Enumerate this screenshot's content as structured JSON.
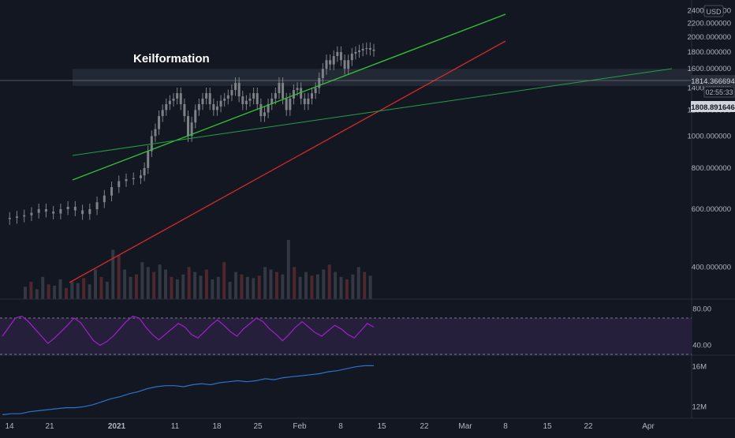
{
  "annotation": "Keilformation",
  "currency": "USD",
  "price_labels": {
    "last_price": "1814.366694",
    "countdown": "02:55:33",
    "line_value": "1808.891646"
  },
  "colors": {
    "background": "#131722",
    "pane_divider": "#2a2e39",
    "candles": "#7f8188",
    "upper_channel": "#33c433",
    "lower_channel": "#d42a2a",
    "long_trend": "#22a046",
    "zone": "#252a36",
    "rsi": "#a020c8",
    "rsi_band": "#261f3c",
    "obv": "#2f6fcc",
    "volume_up": "#3a3e48",
    "volume_down": "#5a2a30"
  },
  "chart_data": [
    {
      "type": "line",
      "name": "price",
      "y_axis": {
        "ticks": [
          "2400.000000",
          "2200.000000",
          "2000.000000",
          "1800.000000",
          "1600.000000",
          "1400.000000",
          "1200.000000",
          "1000.000000",
          "800.000000",
          "600.000000",
          "400.000000"
        ],
        "scale": "log",
        "range": [
          320,
          2450
        ]
      },
      "x_axis": {
        "ticks": [
          "14",
          "21",
          "2021",
          "11",
          "18",
          "25",
          "Feb",
          "8",
          "15",
          "22",
          "Mar",
          "8",
          "15",
          "22",
          "Apr"
        ]
      },
      "close": [
        [
          0,
          560
        ],
        [
          2,
          565
        ],
        [
          4,
          570
        ],
        [
          6,
          575
        ],
        [
          8,
          585
        ],
        [
          10,
          600
        ],
        [
          12,
          590
        ],
        [
          14,
          582
        ],
        [
          16,
          600
        ],
        [
          18,
          610
        ],
        [
          20,
          595
        ],
        [
          22,
          580
        ],
        [
          24,
          600
        ],
        [
          26,
          630
        ],
        [
          28,
          660
        ],
        [
          30,
          700
        ],
        [
          32,
          730
        ],
        [
          34,
          740
        ],
        [
          36,
          745
        ],
        [
          38,
          760
        ],
        [
          39,
          800
        ],
        [
          40,
          900
        ],
        [
          41,
          1000
        ],
        [
          42,
          1050
        ],
        [
          43,
          1150
        ],
        [
          44,
          1200
        ],
        [
          45,
          1250
        ],
        [
          46,
          1280
        ],
        [
          47,
          1300
        ],
        [
          48,
          1350
        ],
        [
          49,
          1250
        ],
        [
          50,
          1150
        ],
        [
          51,
          1000
        ],
        [
          52,
          1100
        ],
        [
          53,
          1200
        ],
        [
          54,
          1250
        ],
        [
          55,
          1300
        ],
        [
          56,
          1350
        ],
        [
          57,
          1250
        ],
        [
          58,
          1200
        ],
        [
          59,
          1230
        ],
        [
          60,
          1280
        ],
        [
          61,
          1300
        ],
        [
          62,
          1330
        ],
        [
          63,
          1380
        ],
        [
          64,
          1450
        ],
        [
          65,
          1320
        ],
        [
          66,
          1250
        ],
        [
          67,
          1280
        ],
        [
          68,
          1300
        ],
        [
          69,
          1350
        ],
        [
          70,
          1250
        ],
        [
          71,
          1150
        ],
        [
          72,
          1180
        ],
        [
          73,
          1250
        ],
        [
          74,
          1300
        ],
        [
          75,
          1350
        ],
        [
          76,
          1450
        ],
        [
          77,
          1300
        ],
        [
          78,
          1200
        ],
        [
          79,
          1300
        ],
        [
          80,
          1380
        ],
        [
          81,
          1400
        ],
        [
          82,
          1300
        ],
        [
          83,
          1250
        ],
        [
          84,
          1300
        ],
        [
          85,
          1350
        ],
        [
          86,
          1400
        ],
        [
          87,
          1500
        ],
        [
          88,
          1600
        ],
        [
          89,
          1700
        ],
        [
          90,
          1650
        ],
        [
          91,
          1750
        ],
        [
          92,
          1800
        ],
        [
          93,
          1700
        ],
        [
          94,
          1600
        ],
        [
          95,
          1700
        ],
        [
          96,
          1780
        ],
        [
          97,
          1800
        ],
        [
          98,
          1820
        ],
        [
          99,
          1840
        ],
        [
          100,
          1850
        ],
        [
          101,
          1830
        ],
        [
          102,
          1814
        ]
      ],
      "volume": [
        50,
        70,
        40,
        90,
        60,
        55,
        80,
        45,
        70,
        65,
        85,
        60,
        120,
        90,
        70,
        200,
        180,
        120,
        90,
        100,
        150,
        130,
        110,
        140,
        120,
        90,
        80,
        100,
        130,
        110,
        95,
        120,
        80,
        90,
        150,
        70,
        110,
        100,
        90,
        85,
        95,
        130,
        120,
        110,
        100,
        240,
        130,
        90,
        110,
        95,
        100,
        120,
        140,
        110,
        90,
        80,
        100,
        130,
        110,
        95
      ]
    },
    {
      "type": "line",
      "name": "RSI",
      "y_axis": {
        "ticks": [
          "80.00",
          "40.00"
        ],
        "range": [
          30,
          90
        ]
      },
      "bands": [
        70,
        30
      ],
      "values": [
        50,
        60,
        70,
        72,
        66,
        58,
        50,
        42,
        48,
        55,
        62,
        70,
        65,
        55,
        45,
        40,
        44,
        50,
        58,
        66,
        72,
        70,
        60,
        52,
        46,
        52,
        58,
        64,
        60,
        52,
        48,
        55,
        62,
        68,
        62,
        55,
        50,
        58,
        64,
        70,
        66,
        58,
        52,
        45,
        52,
        60,
        66,
        60,
        54,
        50,
        56,
        62,
        58,
        52,
        48,
        56,
        64,
        60
      ]
    },
    {
      "type": "line",
      "name": "OBV",
      "y_axis": {
        "ticks": [
          "16M",
          "12M"
        ],
        "range": [
          11000000,
          17000000
        ]
      },
      "values": [
        11.2,
        11.3,
        11.3,
        11.5,
        11.6,
        11.7,
        11.8,
        11.9,
        11.9,
        12.0,
        12.2,
        12.5,
        12.8,
        13.0,
        13.3,
        13.5,
        13.8,
        14.0,
        14.1,
        14.1,
        14.0,
        14.2,
        14.3,
        14.2,
        14.4,
        14.5,
        14.6,
        14.5,
        14.6,
        14.8,
        14.7,
        14.9,
        15.0,
        15.1,
        15.2,
        15.3,
        15.5,
        15.6,
        15.8,
        16.0,
        16.1,
        16.1
      ]
    }
  ]
}
